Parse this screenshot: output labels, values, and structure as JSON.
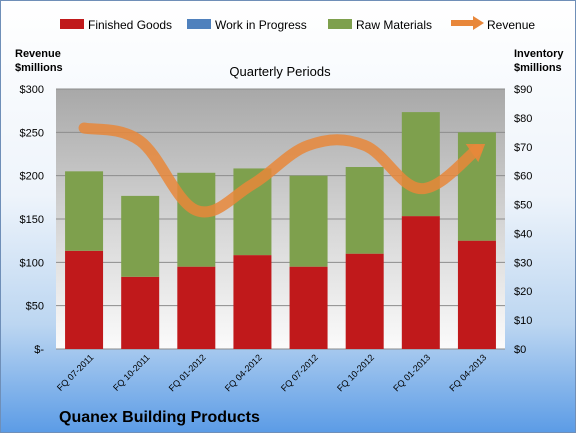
{
  "chart_data": {
    "type": "bar",
    "stacked": true,
    "plot_title": "Quarterly Periods",
    "company": "Quanex Building Products",
    "left_axis_title": [
      "Revenue",
      "$millions"
    ],
    "right_axis_title": [
      "Inventory",
      "$millions"
    ],
    "categories": [
      "FQ 07-2011",
      "FQ 10-2011",
      "FQ 01-2012",
      "FQ 04-2012",
      "FQ 07-2012",
      "FQ 10-2012",
      "FQ 01-2013",
      "FQ 04-2013"
    ],
    "left_ylim": [
      0,
      300
    ],
    "right_ylim": [
      0,
      90
    ],
    "left_ticks": [
      "$-",
      "$50",
      "$100",
      "$150",
      "$200",
      "$250",
      "$300"
    ],
    "right_ticks": [
      "$0",
      "$10",
      "$20",
      "$30",
      "$40",
      "$50",
      "$60",
      "$70",
      "$80",
      "$90"
    ],
    "grid": true,
    "legend_position": "top",
    "series": [
      {
        "name": "Finished Goods",
        "axis": "right",
        "color": "#c0191b",
        "values": [
          34,
          25,
          28.5,
          32.5,
          28.5,
          33,
          46,
          37.5
        ]
      },
      {
        "name": "Work in Progress",
        "axis": "right",
        "color": "#4f81bd",
        "values": [
          0,
          0,
          0,
          0,
          0,
          0,
          0,
          0
        ]
      },
      {
        "name": "Raw Materials",
        "axis": "right",
        "color": "#7ea04d",
        "values": [
          27.5,
          28,
          32.5,
          30,
          31.5,
          30,
          36,
          37.5
        ]
      },
      {
        "name": "Revenue",
        "axis": "left",
        "type": "line",
        "color": "#e8873a",
        "values": [
          255,
          240,
          160,
          190,
          235,
          235,
          185,
          230
        ]
      }
    ]
  }
}
